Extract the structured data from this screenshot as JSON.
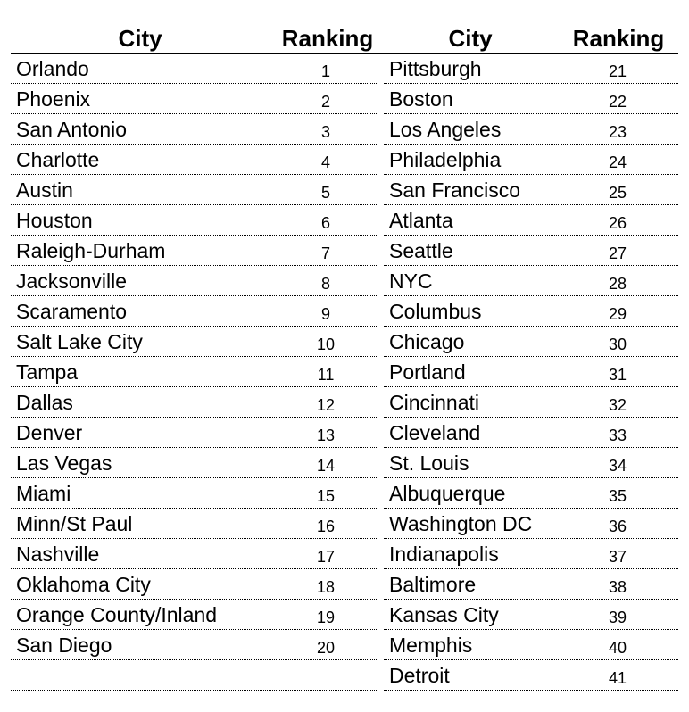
{
  "headers": {
    "left_city": "City",
    "left_ranking": "Ranking",
    "right_city": "City",
    "right_ranking": "Ranking"
  },
  "left": [
    {
      "city": "Orlando",
      "ranking": "1"
    },
    {
      "city": "Phoenix",
      "ranking": "2"
    },
    {
      "city": "San Antonio",
      "ranking": "3"
    },
    {
      "city": "Charlotte",
      "ranking": "4"
    },
    {
      "city": "Austin",
      "ranking": "5"
    },
    {
      "city": "Houston",
      "ranking": "6"
    },
    {
      "city": "Raleigh-Durham",
      "ranking": "7"
    },
    {
      "city": "Jacksonville",
      "ranking": "8"
    },
    {
      "city": "Scaramento",
      "ranking": "9"
    },
    {
      "city": "Salt Lake City",
      "ranking": "10"
    },
    {
      "city": "Tampa",
      "ranking": "11"
    },
    {
      "city": "Dallas",
      "ranking": "12"
    },
    {
      "city": "Denver",
      "ranking": "13"
    },
    {
      "city": "Las Vegas",
      "ranking": "14"
    },
    {
      "city": "Miami",
      "ranking": "15"
    },
    {
      "city": "Minn/St Paul",
      "ranking": "16"
    },
    {
      "city": "Nashville",
      "ranking": "17"
    },
    {
      "city": "Oklahoma City",
      "ranking": "18"
    },
    {
      "city": "Orange County/Inland",
      "ranking": "19"
    },
    {
      "city": "San Diego",
      "ranking": "20"
    },
    {
      "city": "",
      "ranking": ""
    }
  ],
  "right": [
    {
      "city": "Pittsburgh",
      "ranking": "21"
    },
    {
      "city": "Boston",
      "ranking": "22"
    },
    {
      "city": "Los Angeles",
      "ranking": "23"
    },
    {
      "city": "Philadelphia",
      "ranking": "24"
    },
    {
      "city": "San Francisco",
      "ranking": "25"
    },
    {
      "city": "Atlanta",
      "ranking": "26"
    },
    {
      "city": "Seattle",
      "ranking": "27"
    },
    {
      "city": "NYC",
      "ranking": "28"
    },
    {
      "city": "Columbus",
      "ranking": "29"
    },
    {
      "city": "Chicago",
      "ranking": "30"
    },
    {
      "city": "Portland",
      "ranking": "31"
    },
    {
      "city": "Cincinnati",
      "ranking": "32"
    },
    {
      "city": "Cleveland",
      "ranking": "33"
    },
    {
      "city": "St. Louis",
      "ranking": "34"
    },
    {
      "city": "Albuquerque",
      "ranking": "35"
    },
    {
      "city": "Washington DC",
      "ranking": "36"
    },
    {
      "city": "Indianapolis",
      "ranking": "37"
    },
    {
      "city": "Baltimore",
      "ranking": "38"
    },
    {
      "city": "Kansas City",
      "ranking": "39"
    },
    {
      "city": "Memphis",
      "ranking": "40"
    },
    {
      "city": "Detroit",
      "ranking": "41"
    }
  ]
}
